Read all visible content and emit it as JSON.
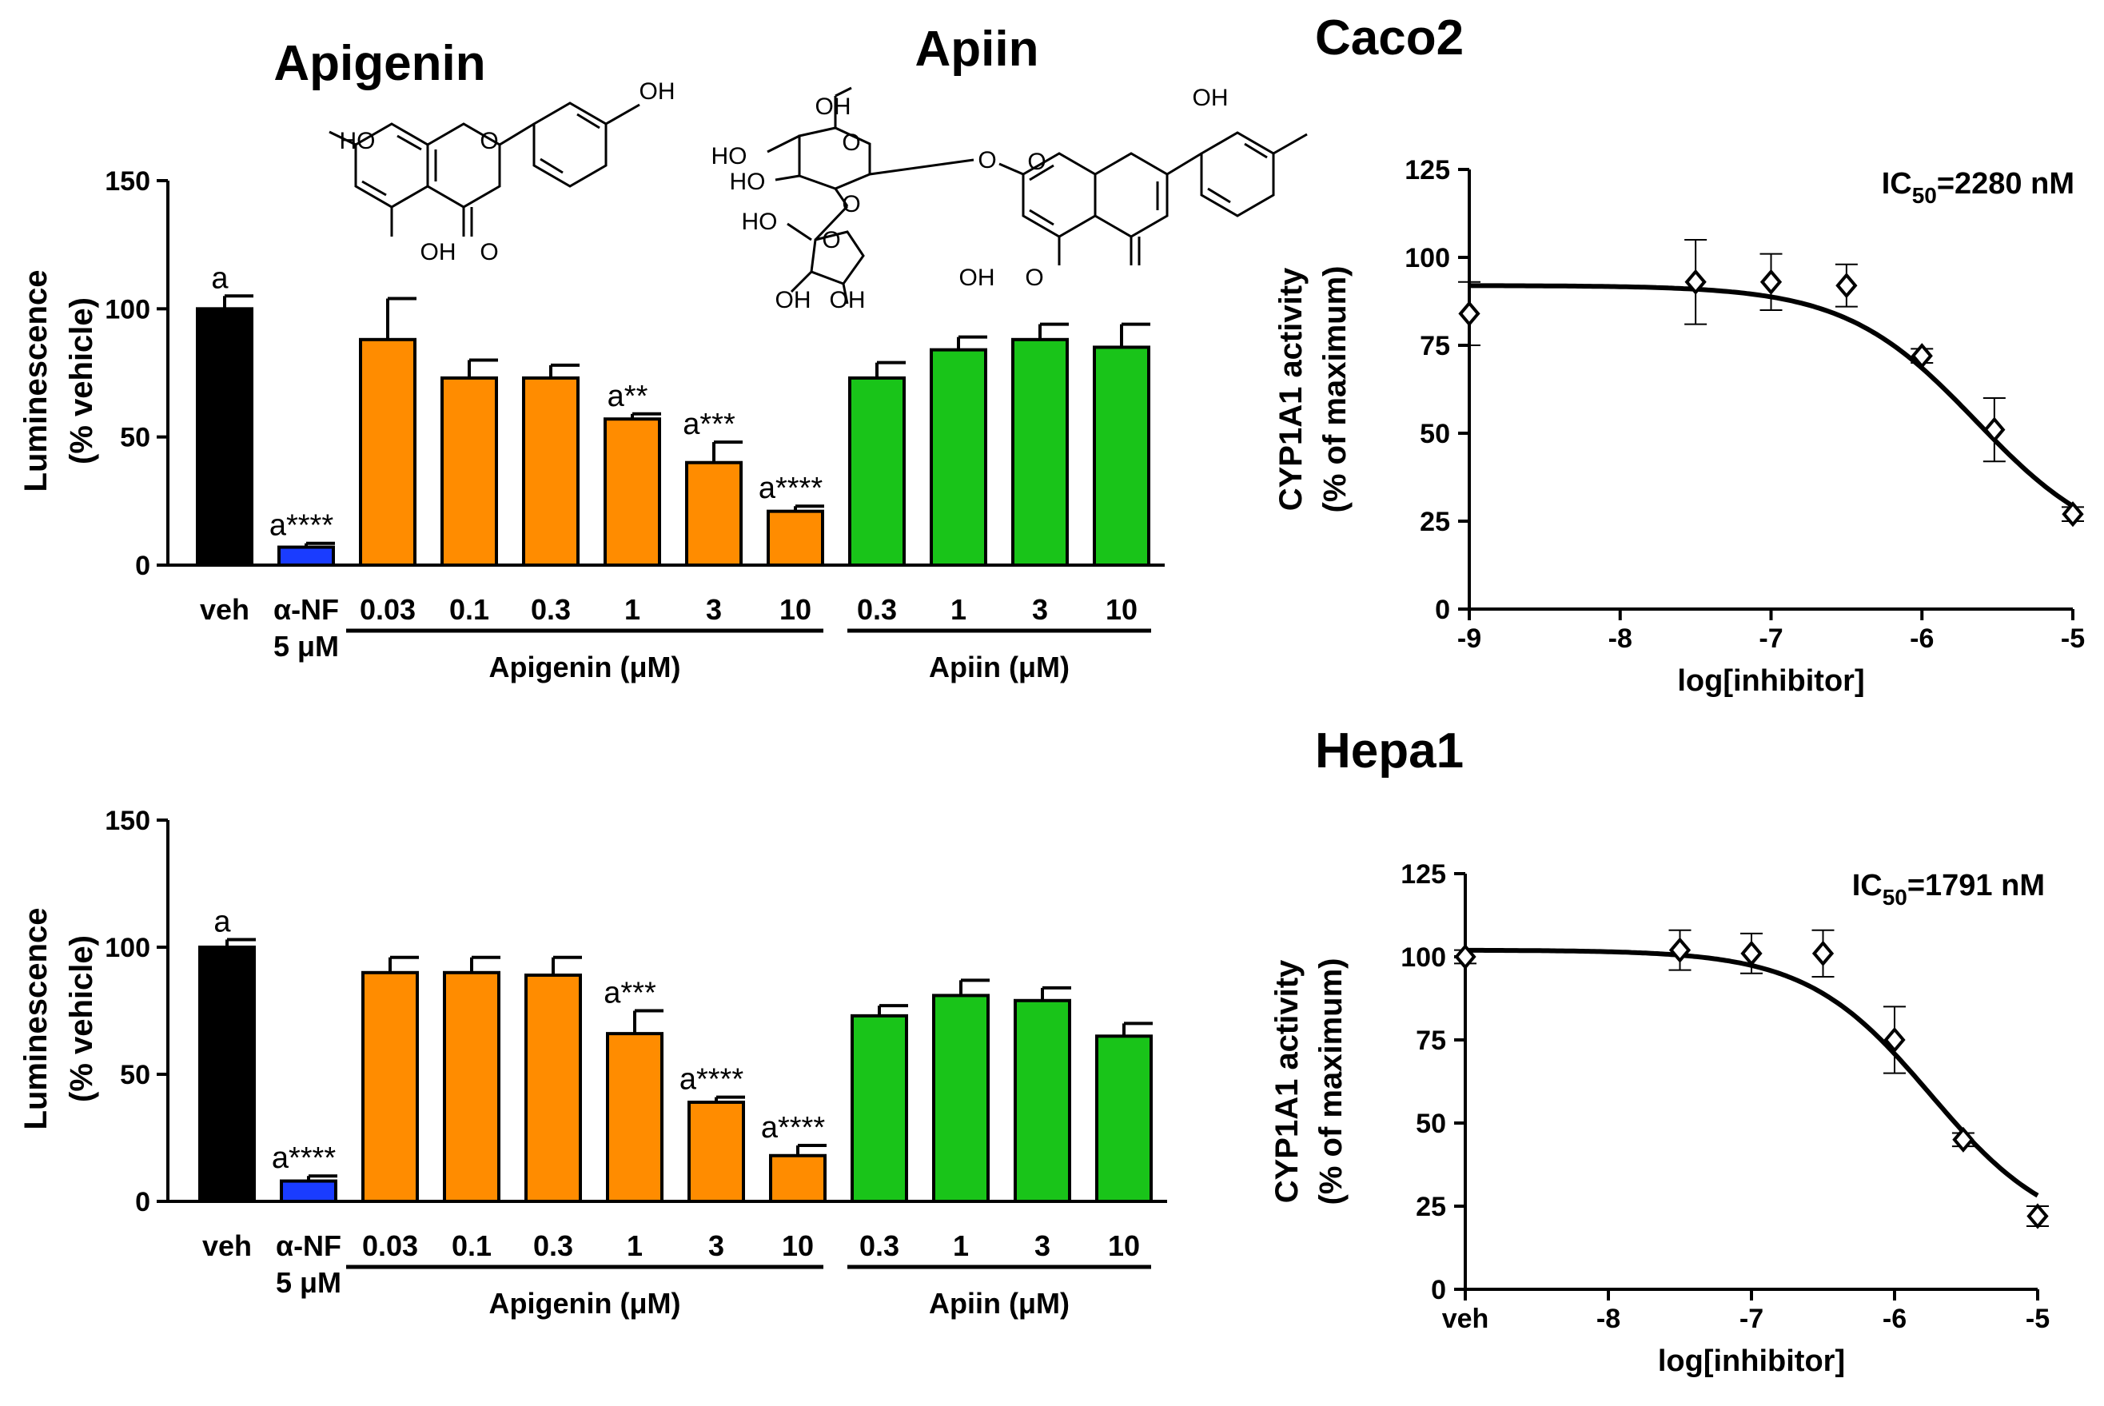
{
  "headings": {
    "apigenin": "Apigenin",
    "apiin": "Apiin",
    "caco2": "Caco2",
    "hepa1": "Hepa1"
  },
  "structures": {
    "apigenin": [
      "HO",
      "OH",
      "OH",
      "O",
      "O"
    ],
    "apiin": [
      "OH",
      "HO",
      "HO",
      "HO",
      "OH",
      "OH",
      "O",
      "O",
      "O",
      "O",
      "O",
      "OH",
      "OH",
      "O"
    ]
  },
  "colors": {
    "veh": "#000000",
    "anf": "#1a3cff",
    "apigenin": "#ff8c00",
    "apiin": "#19c419"
  },
  "chart_data": [
    {
      "type": "bar",
      "id": "bar-top",
      "ylabel_line1": "Luminescence",
      "ylabel_line2": "(% vehicle)",
      "ylim": [
        0,
        150
      ],
      "yticks": [
        "0",
        "50",
        "100",
        "150"
      ],
      "categories": [
        "veh",
        "α-NF",
        "0.03",
        "0.1",
        "0.3",
        "1",
        "3",
        "10",
        "0.3",
        "1",
        "3",
        "10"
      ],
      "cat_sub": [
        "",
        "5 μM",
        "",
        "",
        "",
        "",
        "",
        "",
        "",
        "",
        "",
        ""
      ],
      "series_colors": [
        "veh",
        "anf",
        "apigenin",
        "apigenin",
        "apigenin",
        "apigenin",
        "apigenin",
        "apigenin",
        "apiin",
        "apiin",
        "apiin",
        "apiin"
      ],
      "values": [
        100,
        7,
        88,
        73,
        73,
        57,
        40,
        21,
        73,
        84,
        88,
        85
      ],
      "errors": [
        5,
        1.5,
        16,
        7,
        5,
        2,
        8,
        2,
        6,
        5,
        6,
        9
      ],
      "annotations": [
        "a",
        "a****",
        "",
        "",
        "",
        "a**",
        "a***",
        "a****",
        "",
        "",
        "",
        ""
      ],
      "group_labels": [
        "Apigenin (μM)",
        "Apiin (μM)"
      ]
    },
    {
      "type": "bar",
      "id": "bar-bottom",
      "ylabel_line1": "Luminescence",
      "ylabel_line2": "(% vehicle)",
      "ylim": [
        0,
        150
      ],
      "yticks": [
        "0",
        "50",
        "100",
        "150"
      ],
      "categories": [
        "veh",
        "α-NF",
        "0.03",
        "0.1",
        "0.3",
        "1",
        "3",
        "10",
        "0.3",
        "1",
        "3",
        "10"
      ],
      "cat_sub": [
        "",
        "5 μM",
        "",
        "",
        "",
        "",
        "",
        "",
        "",
        "",
        "",
        ""
      ],
      "series_colors": [
        "veh",
        "anf",
        "apigenin",
        "apigenin",
        "apigenin",
        "apigenin",
        "apigenin",
        "apigenin",
        "apiin",
        "apiin",
        "apiin",
        "apiin"
      ],
      "values": [
        100,
        8,
        90,
        90,
        89,
        66,
        39,
        18,
        73,
        81,
        79,
        65
      ],
      "errors": [
        3,
        2,
        6,
        6,
        7,
        9,
        2,
        4,
        4,
        6,
        5,
        5
      ],
      "annotations": [
        "a",
        "a****",
        "",
        "",
        "",
        "a***",
        "a****",
        "a****",
        "",
        "",
        "",
        ""
      ],
      "group_labels": [
        "Apigenin (μM)",
        "Apiin (μM)"
      ]
    },
    {
      "type": "scatter",
      "id": "dose-caco2",
      "fit": "sigmoidal dose-response",
      "ylabel_line1": "CYP1A1 activity",
      "ylabel_line2": "(% of maximum)",
      "xlabel": "log[inhibitor]",
      "xlim": [
        -9,
        -5
      ],
      "ylim": [
        0,
        125
      ],
      "xtick_values": [
        -9,
        -8,
        -7,
        -6,
        -5
      ],
      "xtick_labels": [
        "-9",
        "-8",
        "-7",
        "-6",
        "-5"
      ],
      "yticks": [
        "0",
        "25",
        "50",
        "75",
        "100",
        "125"
      ],
      "x": [
        -9,
        -7.5,
        -7,
        -6.5,
        -6,
        -5.52,
        -5
      ],
      "y": [
        84,
        93,
        93,
        92,
        72,
        51,
        27
      ],
      "errors": [
        9,
        12,
        8,
        6,
        2,
        9,
        2
      ],
      "fit_top": 92,
      "fit_bottom": 15,
      "logIC50": -5.642,
      "ic50_label": "IC",
      "ic50_sub": "50",
      "ic50_value": "=2280 nM"
    },
    {
      "type": "scatter",
      "id": "dose-hepa1",
      "fit": "sigmoidal dose-response",
      "ylabel_line1": "CYP1A1 activity",
      "ylabel_line2": "(% of maximum)",
      "xlabel": "log[inhibitor]",
      "xlim": [
        -9,
        -5
      ],
      "ylim": [
        0,
        125
      ],
      "xtick_values": [
        -9,
        -8,
        -7,
        -6,
        -5
      ],
      "xtick_labels": [
        "veh",
        "-8",
        "-7",
        "-6",
        "-5"
      ],
      "yticks": [
        "0",
        "25",
        "50",
        "75",
        "100",
        "125"
      ],
      "x": [
        -9,
        -7.5,
        -7,
        -6.5,
        -6,
        -5.52,
        -5
      ],
      "y": [
        100,
        102,
        101,
        101,
        75,
        45,
        22
      ],
      "errors": [
        2,
        6,
        6,
        7,
        10,
        2,
        3
      ],
      "fit_top": 102,
      "fit_bottom": 15,
      "logIC50": -5.747,
      "ic50_label": "IC",
      "ic50_sub": "50",
      "ic50_value": "=1791 nM"
    }
  ]
}
